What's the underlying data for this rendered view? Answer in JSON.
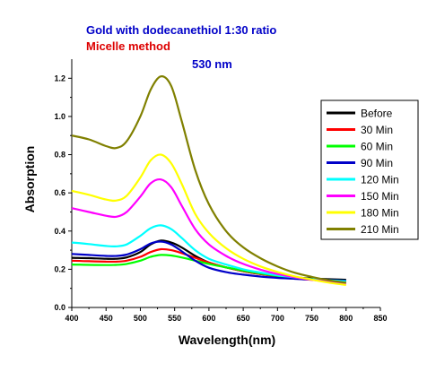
{
  "chart_data": {
    "type": "line",
    "title": "Gold with dodecanethiol 1:30 ratio",
    "subtitle": "Micelle method",
    "annotation": "530 nm",
    "xlabel": "Wavelength(nm)",
    "ylabel": "Absorption",
    "xlim": [
      400,
      850
    ],
    "ylim": [
      0.0,
      1.3
    ],
    "x_ticks": [
      400,
      450,
      500,
      550,
      600,
      650,
      700,
      750,
      800,
      850
    ],
    "y_ticks": [
      0.0,
      0.2,
      0.4,
      0.6,
      0.8,
      1.0,
      1.2
    ],
    "x_tick_labels": [
      "400",
      "450",
      "500",
      "550",
      "600",
      "650",
      "700",
      "750",
      "800",
      "850"
    ],
    "y_tick_labels": [
      "0.0",
      "0.2",
      "0.4",
      "0.6",
      "0.8",
      "1.0",
      "1.2"
    ],
    "legend_position": "top-right",
    "grid": false,
    "x": [
      400,
      425,
      450,
      465,
      480,
      500,
      515,
      530,
      545,
      560,
      580,
      600,
      625,
      650,
      675,
      700,
      725,
      750,
      775,
      800
    ],
    "series": [
      {
        "name": "Before",
        "color": "#000000",
        "values": [
          0.26,
          0.258,
          0.255,
          0.255,
          0.262,
          0.29,
          0.33,
          0.35,
          0.34,
          0.315,
          0.27,
          0.235,
          0.21,
          0.19,
          0.175,
          0.165,
          0.158,
          0.152,
          0.148,
          0.145
        ]
      },
      {
        "name": "30 Min",
        "color": "#ff0000",
        "values": [
          0.245,
          0.242,
          0.24,
          0.24,
          0.245,
          0.265,
          0.29,
          0.305,
          0.3,
          0.285,
          0.26,
          0.235,
          0.21,
          0.19,
          0.175,
          0.162,
          0.152,
          0.145,
          0.14,
          0.135
        ]
      },
      {
        "name": "60 Min",
        "color": "#00ff00",
        "values": [
          0.225,
          0.223,
          0.222,
          0.223,
          0.228,
          0.245,
          0.265,
          0.275,
          0.272,
          0.262,
          0.245,
          0.228,
          0.21,
          0.193,
          0.178,
          0.165,
          0.155,
          0.147,
          0.14,
          0.133
        ]
      },
      {
        "name": "90 Min",
        "color": "#0000c8",
        "values": [
          0.28,
          0.275,
          0.27,
          0.27,
          0.277,
          0.305,
          0.335,
          0.345,
          0.33,
          0.295,
          0.245,
          0.208,
          0.185,
          0.172,
          0.162,
          0.155,
          0.15,
          0.146,
          0.143,
          0.14
        ]
      },
      {
        "name": "120 Min",
        "color": "#00ffff",
        "values": [
          0.34,
          0.332,
          0.322,
          0.32,
          0.33,
          0.375,
          0.415,
          0.43,
          0.41,
          0.365,
          0.3,
          0.255,
          0.225,
          0.2,
          0.183,
          0.168,
          0.157,
          0.148,
          0.142,
          0.137
        ]
      },
      {
        "name": "150 Min",
        "color": "#ff00ff",
        "values": [
          0.52,
          0.5,
          0.48,
          0.475,
          0.5,
          0.58,
          0.65,
          0.67,
          0.63,
          0.535,
          0.41,
          0.33,
          0.27,
          0.228,
          0.198,
          0.175,
          0.158,
          0.145,
          0.135,
          0.125
        ]
      },
      {
        "name": "180 Min",
        "color": "#ffff00",
        "values": [
          0.61,
          0.59,
          0.565,
          0.56,
          0.585,
          0.68,
          0.77,
          0.8,
          0.755,
          0.65,
          0.49,
          0.39,
          0.31,
          0.255,
          0.215,
          0.186,
          0.163,
          0.146,
          0.13,
          0.118
        ]
      },
      {
        "name": "210 Min",
        "color": "#808000",
        "values": [
          0.9,
          0.88,
          0.845,
          0.835,
          0.87,
          1.0,
          1.14,
          1.21,
          1.16,
          0.98,
          0.72,
          0.54,
          0.4,
          0.315,
          0.258,
          0.215,
          0.182,
          0.16,
          0.142,
          0.13
        ]
      }
    ]
  },
  "colors": {
    "title": "#0000c8",
    "subtitle": "#dd0000",
    "annotation": "#0000c8"
  }
}
